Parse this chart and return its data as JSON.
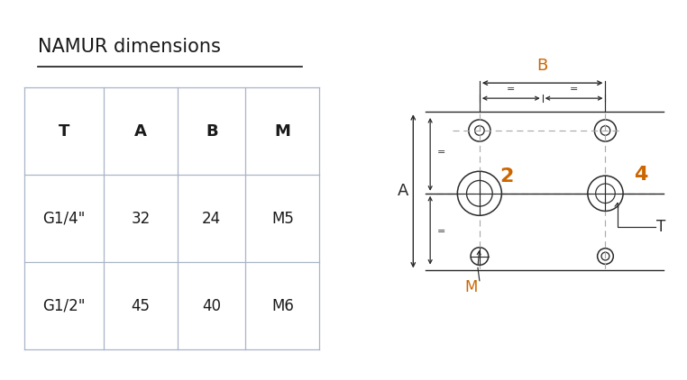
{
  "title": "NAMUR dimensions",
  "bg_color": "#ffffff",
  "table_headers": [
    "T",
    "A",
    "B",
    "M"
  ],
  "table_rows": [
    [
      "G1/4\"",
      "32",
      "24",
      "M5"
    ],
    [
      "G1/2\"",
      "45",
      "40",
      "M6"
    ]
  ],
  "table_color": "#aab4c8",
  "title_color": "#1a1a1a",
  "drawing_color": "#2a2a2a",
  "orange_color": "#cc6600",
  "dash_color": "#aaaaaa",
  "title_fontsize": 15,
  "table_header_fontsize": 13,
  "table_cell_fontsize": 12
}
